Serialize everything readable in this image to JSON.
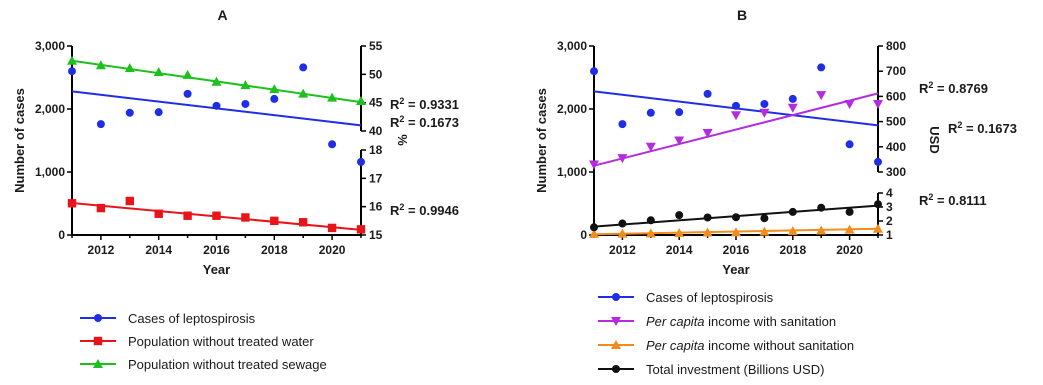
{
  "chart_data": [
    {
      "panel": "A",
      "type": "scatter",
      "xlabel": "Year",
      "ylabel": "Number of cases",
      "x": [
        2011,
        2012,
        2013,
        2014,
        2015,
        2016,
        2017,
        2018,
        2019,
        2020,
        2021
      ],
      "xlim": [
        2011,
        2021
      ],
      "xticks": [
        "2012",
        "2014",
        "2016",
        "2018",
        "2020"
      ],
      "ylim": [
        0,
        3000
      ],
      "yticks": [
        "0",
        "1,000",
        "2,000",
        "3,000"
      ],
      "right_axis_upper": {
        "ylim": [
          40,
          55
        ],
        "ticks": [
          "40",
          "45",
          "50",
          "55"
        ]
      },
      "right_axis_lower": {
        "ylim": [
          15,
          18
        ],
        "ticks": [
          "15",
          "16",
          "17",
          "18"
        ],
        "label": "%"
      },
      "series": [
        {
          "name": "Cases of leptospirosis",
          "color": "#1f2ee6",
          "marker": "circle",
          "axis": "left",
          "values": [
            2600,
            1760,
            1940,
            1950,
            2240,
            2050,
            2080,
            2160,
            2660,
            1440,
            1160
          ],
          "fit": [
            2280,
            1740
          ]
        },
        {
          "name": "Population without treated water",
          "color": "#e8141a",
          "marker": "square",
          "axis": "right_lower",
          "values": [
            16.12,
            15.95,
            16.2,
            15.75,
            15.68,
            15.68,
            15.62,
            15.5,
            15.45,
            15.25,
            15.2
          ],
          "fit": [
            16.13,
            15.18
          ]
        },
        {
          "name": "Population without treated sewage",
          "color": "#1dc11d",
          "marker": "triangle",
          "axis": "right_upper",
          "values": [
            52.4,
            51.6,
            51.1,
            50.4,
            49.9,
            48.7,
            48.1,
            47.4,
            46.6,
            45.9,
            45.3
          ],
          "fit": [
            52.4,
            45.1
          ]
        }
      ],
      "annotations": [
        "R² = 0.9331",
        "R² = 0.1673",
        "R² = 0.9946"
      ]
    },
    {
      "panel": "B",
      "type": "scatter",
      "xlabel": "Year",
      "ylabel": "Number of cases",
      "x": [
        2011,
        2012,
        2013,
        2014,
        2015,
        2016,
        2017,
        2018,
        2019,
        2020,
        2021
      ],
      "xlim": [
        2011,
        2021
      ],
      "xticks": [
        "2012",
        "2014",
        "2016",
        "2018",
        "2020"
      ],
      "ylim": [
        0,
        3000
      ],
      "yticks": [
        "0",
        "1,000",
        "2,000",
        "3,000"
      ],
      "right_axis_upper": {
        "ylim": [
          300,
          800
        ],
        "ticks": [
          "300",
          "400",
          "500",
          "600",
          "700",
          "800"
        ],
        "label": "USD"
      },
      "right_axis_lower": {
        "ylim": [
          1,
          4
        ],
        "ticks": [
          "1",
          "2",
          "3",
          "4"
        ]
      },
      "series": [
        {
          "name": "Cases of leptospirosis",
          "color": "#1f2ee6",
          "marker": "circle",
          "axis": "left",
          "values": [
            2600,
            1760,
            1940,
            1950,
            2240,
            2050,
            2080,
            2160,
            2660,
            1440,
            1160
          ],
          "fit": [
            2280,
            1740
          ]
        },
        {
          "name": "Per capita income with sanitation",
          "color": "#b42be0",
          "marker": "triangle-down",
          "axis": "right_upper",
          "values": [
            330,
            355,
            400,
            425,
            455,
            525,
            535,
            555,
            605,
            570,
            570
          ],
          "fit": [
            325,
            612
          ]
        },
        {
          "name": "Per capita income without sanitation",
          "color": "#f28c1c",
          "marker": "triangle",
          "axis": "right_lower",
          "values": [
            1.08,
            1.1,
            1.12,
            1.14,
            1.18,
            1.2,
            1.24,
            1.28,
            1.32,
            1.38,
            1.45
          ],
          "fit": [
            1.05,
            1.45
          ]
        },
        {
          "name": "Total investment (Billions USD)",
          "color": "#111111",
          "marker": "circle",
          "axis": "right_lower",
          "values": [
            1.55,
            1.82,
            2.05,
            2.42,
            2.25,
            2.27,
            2.2,
            2.65,
            2.95,
            2.65,
            3.2
          ],
          "fit": [
            1.6,
            3.1
          ]
        }
      ],
      "annotations": [
        "R² = 0.8769",
        "R² = 0.1673",
        "R² = 0.8111"
      ]
    }
  ],
  "legendA": [
    {
      "pre": "",
      "it": "",
      "post": "Cases of leptospirosis"
    },
    {
      "pre": "",
      "it": "",
      "post": "Population without treated water"
    },
    {
      "pre": "",
      "it": "",
      "post": "Population without treated sewage"
    }
  ],
  "legendB": [
    {
      "pre": "",
      "it": "",
      "post": "Cases of leptospirosis"
    },
    {
      "pre": "",
      "it": "Per capita",
      "post": " income with sanitation"
    },
    {
      "pre": "",
      "it": "Per capita",
      "post": " income without sanitation"
    },
    {
      "pre": "",
      "it": "",
      "post": "Total investment (Billions USD)"
    }
  ]
}
